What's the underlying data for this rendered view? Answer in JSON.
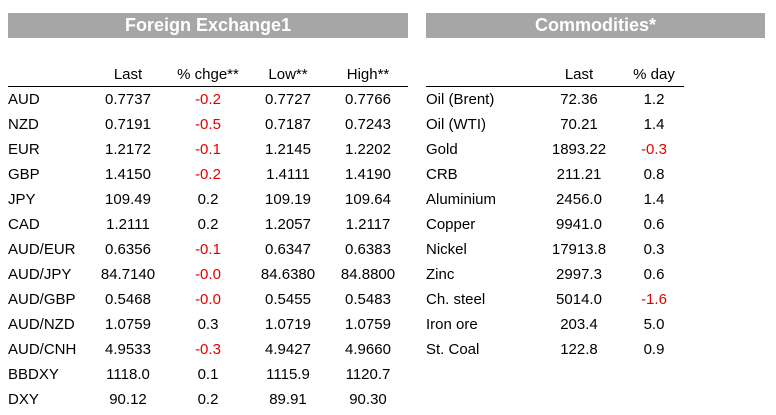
{
  "fx": {
    "title": "Foreign Exchange1",
    "headers": [
      "",
      "Last",
      "% chge**",
      "Low**",
      "High**"
    ],
    "rows": [
      [
        "AUD",
        "0.7737",
        "-0.2",
        "0.7727",
        "0.7766"
      ],
      [
        "NZD",
        "0.7191",
        "-0.5",
        "0.7187",
        "0.7243"
      ],
      [
        "EUR",
        "1.2172",
        "-0.1",
        "1.2145",
        "1.2202"
      ],
      [
        "GBP",
        "1.4150",
        "-0.2",
        "1.4111",
        "1.4190"
      ],
      [
        "JPY",
        "109.49",
        "0.2",
        "109.19",
        "109.64"
      ],
      [
        "CAD",
        "1.2111",
        "0.2",
        "1.2057",
        "1.2117"
      ],
      [
        "AUD/EUR",
        "0.6356",
        "-0.1",
        "0.6347",
        "0.6383"
      ],
      [
        "AUD/JPY",
        "84.7140",
        "-0.0",
        "84.6380",
        "84.8800"
      ],
      [
        "AUD/GBP",
        "0.5468",
        "-0.0",
        "0.5455",
        "0.5483"
      ],
      [
        "AUD/NZD",
        "1.0759",
        "0.3",
        "1.0719",
        "1.0759"
      ],
      [
        "AUD/CNH",
        "4.9533",
        "-0.3",
        "4.9427",
        "4.9660"
      ],
      [
        "BBDXY",
        "1118.0",
        "0.1",
        "1115.9",
        "1120.7"
      ],
      [
        "DXY",
        "90.12",
        "0.2",
        "89.91",
        "90.30"
      ]
    ]
  },
  "commodities": {
    "title": "Commodities*",
    "headers": [
      "",
      "Last",
      "% day"
    ],
    "rows": [
      [
        "Oil (Brent)",
        "72.36",
        "1.2"
      ],
      [
        "Oil (WTI)",
        "70.21",
        "1.4"
      ],
      [
        "Gold",
        "1893.22",
        "-0.3"
      ],
      [
        "CRB",
        "211.21",
        "0.8"
      ],
      [
        "Aluminium",
        "2456.0",
        "1.4"
      ],
      [
        "Copper",
        "9941.0",
        "0.6"
      ],
      [
        "Nickel",
        "17913.8",
        "0.3"
      ],
      [
        "Zinc",
        "2997.3",
        "0.6"
      ],
      [
        "Ch. steel",
        "5014.0",
        "-1.6"
      ],
      [
        "Iron ore",
        "203.4",
        "5.0"
      ],
      [
        "St. Coal",
        "122.8",
        "0.9"
      ]
    ]
  },
  "colors": {
    "header_bar": "#a6a6a6",
    "negative": "#e00000"
  }
}
